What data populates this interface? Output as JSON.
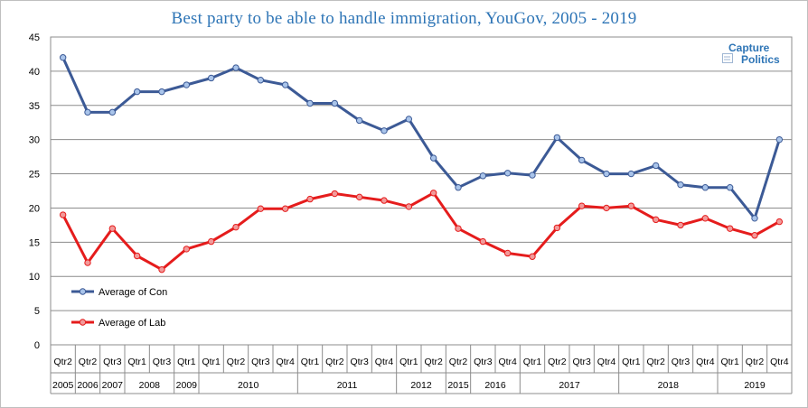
{
  "title": "Best party to be able to handle immigration, YouGov, 2005 - 2019",
  "logo": {
    "line1": "Capture",
    "line2": "Politics"
  },
  "colors": {
    "con": "#3c5a96",
    "lab": "#e51c1c",
    "title": "#2e75b6",
    "grid": "#8c8c8c"
  },
  "chart_data": {
    "type": "line",
    "title": "Best party to be able to handle immigration, YouGov, 2005 - 2019",
    "ylim": [
      0,
      45
    ],
    "yticks": [
      0,
      5,
      10,
      15,
      20,
      25,
      30,
      35,
      40,
      45
    ],
    "grid": true,
    "legend_placement": "bottom-left",
    "categories": [
      "Qtr2",
      "Qtr2",
      "Qtr3",
      "Qtr1",
      "Qtr3",
      "Qtr1",
      "Qtr1",
      "Qtr2",
      "Qtr3",
      "Qtr4",
      "Qtr1",
      "Qtr2",
      "Qtr3",
      "Qtr4",
      "Qtr1",
      "Qtr2",
      "Qtr2",
      "Qtr3",
      "Qtr4",
      "Qtr1",
      "Qtr2",
      "Qtr3",
      "Qtr4",
      "Qtr1",
      "Qtr2",
      "Qtr3",
      "Qtr4",
      "Qtr1",
      "Qtr2",
      "Qtr4"
    ],
    "years": [
      {
        "label": "2005",
        "start": 0,
        "end": 0
      },
      {
        "label": "2006",
        "start": 1,
        "end": 1
      },
      {
        "label": "2007",
        "start": 2,
        "end": 2
      },
      {
        "label": "2008",
        "start": 3,
        "end": 4
      },
      {
        "label": "2009",
        "start": 5,
        "end": 5
      },
      {
        "label": "2010",
        "start": 6,
        "end": 9
      },
      {
        "label": "2011",
        "start": 10,
        "end": 13
      },
      {
        "label": "2012",
        "start": 14,
        "end": 15
      },
      {
        "label": "2015",
        "start": 16,
        "end": 16
      },
      {
        "label": "2016",
        "start": 17,
        "end": 18
      },
      {
        "label": "2017",
        "start": 19,
        "end": 22
      },
      {
        "label": "2018",
        "start": 23,
        "end": 26
      },
      {
        "label": "2019",
        "start": 27,
        "end": 29
      }
    ],
    "series": [
      {
        "name": "Average of Con",
        "color": "#3c5a96",
        "values": [
          42,
          34,
          34,
          37,
          37,
          38,
          39,
          40.5,
          38.7,
          38,
          35.3,
          35.3,
          32.8,
          31.3,
          33,
          27.3,
          23,
          24.7,
          25.1,
          24.8,
          30.3,
          27,
          25,
          25,
          26.2,
          23.4,
          23,
          23,
          18.5,
          30
        ]
      },
      {
        "name": "Average of Lab",
        "color": "#e51c1c",
        "values": [
          19,
          12,
          17,
          13,
          11,
          14,
          15.1,
          17.2,
          19.9,
          19.9,
          21.3,
          22.1,
          21.6,
          21.1,
          20.2,
          22.2,
          17,
          15.1,
          13.4,
          12.9,
          17.1,
          20.3,
          20,
          20.3,
          18.3,
          17.5,
          18.5,
          17,
          16,
          18
        ]
      }
    ]
  }
}
